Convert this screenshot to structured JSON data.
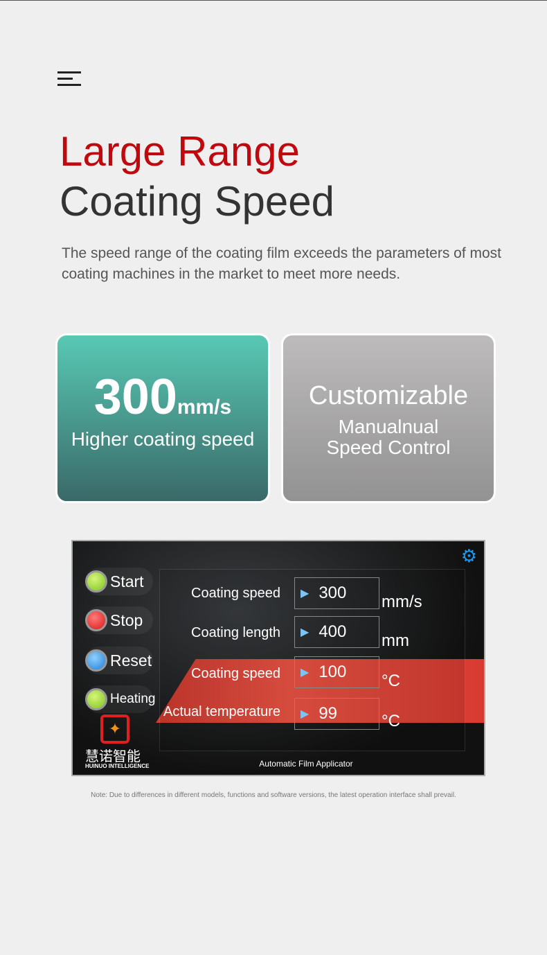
{
  "header": {
    "title_line1": "Large Range",
    "title_line2": "Coating Speed",
    "description": "The speed range of the coating film exceeds the parameters of most coating machines in the market to meet more needs."
  },
  "cards": [
    {
      "value": "300",
      "unit": "mm/s",
      "caption": "Higher coating speed"
    },
    {
      "title": "Customizable",
      "line1": "Manualnual",
      "line2": "Speed Control"
    }
  ],
  "screen": {
    "buttons": [
      {
        "label": "Start",
        "color": "#7cc41e"
      },
      {
        "label": "Stop",
        "color": "#d81818"
      },
      {
        "label": "Reset",
        "color": "#1e7fd8"
      },
      {
        "label": "Heating",
        "color": "#7cc41e"
      }
    ],
    "params": [
      {
        "label": "Coating speed",
        "value": "300",
        "unit": "mm/s"
      },
      {
        "label": "Coating length",
        "value": "400",
        "unit": "mm"
      },
      {
        "label": "Coating speed",
        "value": "100",
        "unit": "°C"
      },
      {
        "label": "Actual temperature",
        "value": "99",
        "unit": "°C"
      }
    ],
    "brand_cn": "慧诺智能",
    "brand_en": "HUINUO INTELLIGENCE",
    "footer": "Automatic Film Applicator"
  },
  "note": "Note: Due to differences in different models, functions and software versions, the latest operation interface shall prevail."
}
